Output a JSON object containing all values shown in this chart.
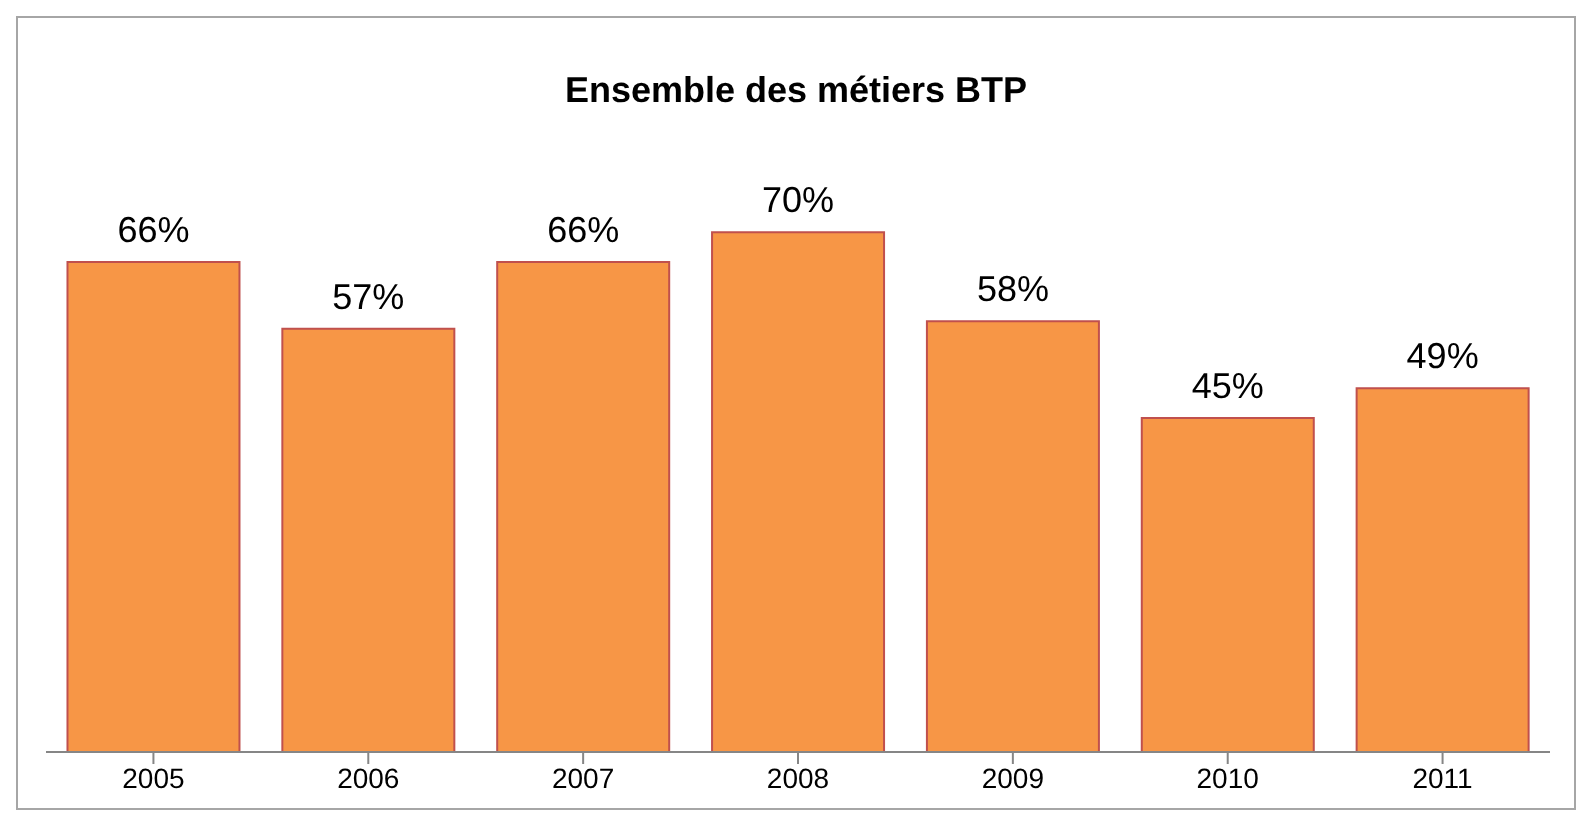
{
  "chart_data": {
    "type": "bar",
    "title": "Ensemble des métiers BTP",
    "categories": [
      "2005",
      "2006",
      "2007",
      "2008",
      "2009",
      "2010",
      "2011"
    ],
    "values": [
      66,
      57,
      66,
      70,
      58,
      45,
      49
    ],
    "value_labels": [
      "66%",
      "57%",
      "66%",
      "70%",
      "58%",
      "45%",
      "49%"
    ],
    "color": "#f79646"
  }
}
